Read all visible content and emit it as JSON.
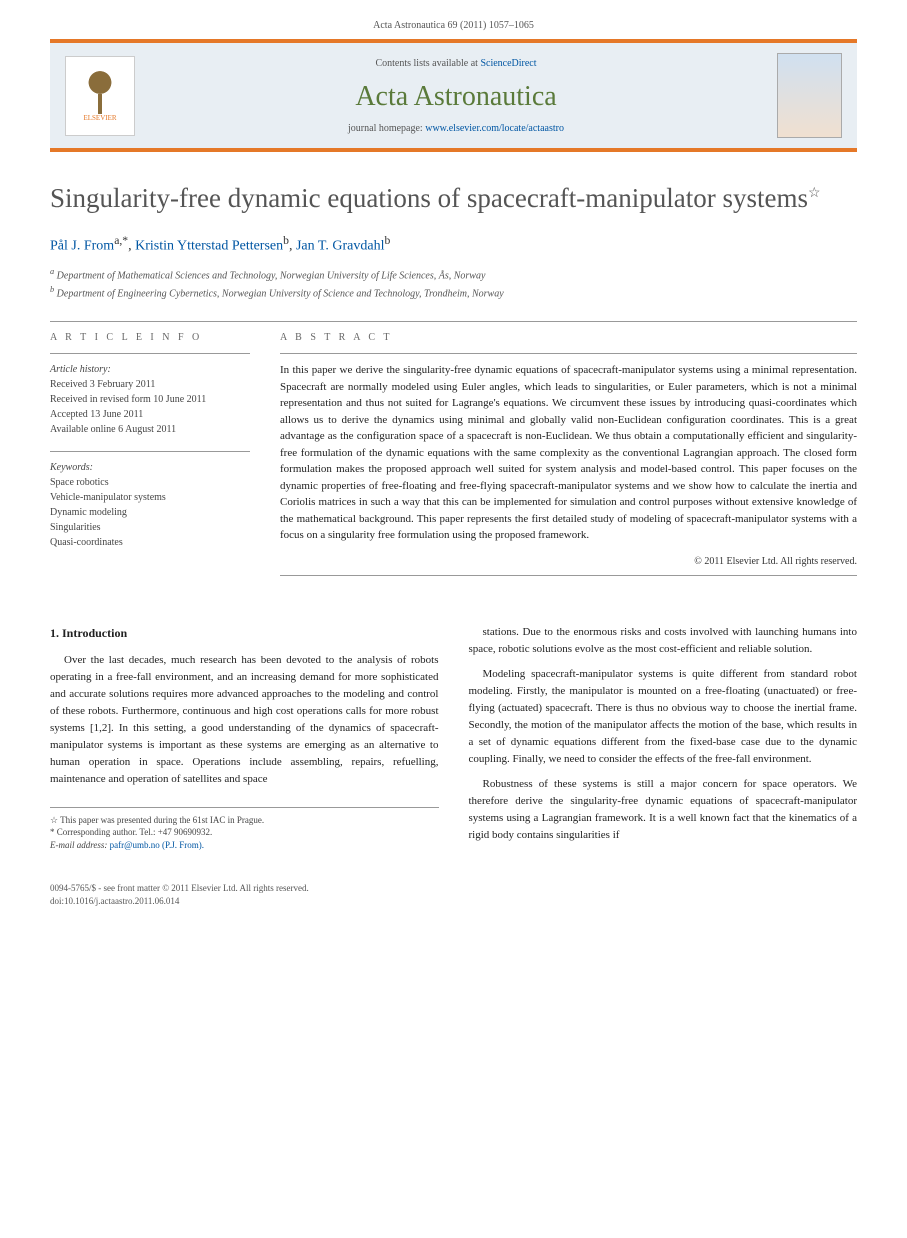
{
  "journal_ref": "Acta Astronautica 69 (2011) 1057–1065",
  "banner": {
    "contents_prefix": "Contents lists available at ",
    "contents_link": "ScienceDirect",
    "journal_name": "Acta Astronautica",
    "homepage_prefix": "journal homepage: ",
    "homepage_url": "www.elsevier.com/locate/actaastro",
    "publisher": "ELSEVIER"
  },
  "title": "Singularity-free dynamic equations of spacecraft-manipulator systems",
  "title_note_marker": "☆",
  "authors": [
    {
      "name": "Pål J. From",
      "aff": "a",
      "marks": ",*"
    },
    {
      "name": "Kristin Ytterstad Pettersen",
      "aff": "b",
      "marks": ""
    },
    {
      "name": "Jan T. Gravdahl",
      "aff": "b",
      "marks": ""
    }
  ],
  "affiliations": [
    {
      "key": "a",
      "text": "Department of Mathematical Sciences and Technology, Norwegian University of Life Sciences, Ås, Norway"
    },
    {
      "key": "b",
      "text": "Department of Engineering Cybernetics, Norwegian University of Science and Technology, Trondheim, Norway"
    }
  ],
  "info_heading": "a r t i c l e  i n f o",
  "abstract_heading": "a b s t r a c t",
  "history": {
    "label": "Article history:",
    "received": "Received 3 February 2011",
    "revised": "Received in revised form 10 June 2011",
    "accepted": "Accepted 13 June 2011",
    "online": "Available online 6 August 2011"
  },
  "keywords": {
    "label": "Keywords:",
    "items": [
      "Space robotics",
      "Vehicle-manipulator systems",
      "Dynamic modeling",
      "Singularities",
      "Quasi-coordinates"
    ]
  },
  "abstract": "In this paper we derive the singularity-free dynamic equations of spacecraft-manipulator systems using a minimal representation. Spacecraft are normally modeled using Euler angles, which leads to singularities, or Euler parameters, which is not a minimal representation and thus not suited for Lagrange's equations. We circumvent these issues by introducing quasi-coordinates which allows us to derive the dynamics using minimal and globally valid non-Euclidean configuration coordinates. This is a great advantage as the configuration space of a spacecraft is non-Euclidean. We thus obtain a computationally efficient and singularity-free formulation of the dynamic equations with the same complexity as the conventional Lagrangian approach. The closed form formulation makes the proposed approach well suited for system analysis and model-based control. This paper focuses on the dynamic properties of free-floating and free-flying spacecraft-manipulator systems and we show how to calculate the inertia and Coriolis matrices in such a way that this can be implemented for simulation and control purposes without extensive knowledge of the mathematical background. This paper represents the first detailed study of modeling of spacecraft-manipulator systems with a focus on a singularity free formulation using the proposed framework.",
  "copyright": "© 2011 Elsevier Ltd. All rights reserved.",
  "intro": {
    "heading": "1.  Introduction",
    "p1": "Over the last decades, much research has been devoted to the analysis of robots operating in a free-fall environment, and an increasing demand for more sophisticated and accurate solutions requires more advanced approaches to the modeling and control of these robots. Furthermore, continuous and high cost operations calls for more robust systems [1,2]. In this setting, a good understanding of the dynamics of spacecraft-manipulator systems is important as these systems are emerging as an alternative to human operation in space. Operations include assembling, repairs, refuelling, maintenance and operation of satellites and space",
    "p2": "stations. Due to the enormous risks and costs involved with launching humans into space, robotic solutions evolve as the most cost-efficient and reliable solution.",
    "p3": "Modeling spacecraft-manipulator systems is quite different from standard robot modeling. Firstly, the manipulator is mounted on a free-floating (unactuated) or free-flying (actuated) spacecraft. There is thus no obvious way to choose the inertial frame. Secondly, the motion of the manipulator affects the motion of the base, which results in a set of dynamic equations different from the fixed-base case due to the dynamic coupling. Finally, we need to consider the effects of the free-fall environment.",
    "p4": "Robustness of these systems is still a major concern for space operators. We therefore derive the singularity-free dynamic equations of spacecraft-manipulator systems using a Lagrangian framework. It is a well known fact that the kinematics of a rigid body contains singularities if"
  },
  "footnotes": {
    "presented": "☆ This paper was presented during the 61st IAC in Prague.",
    "corresponding": "* Corresponding author. Tel.: +47 90690932.",
    "email_label": "E-mail address:",
    "email": "pafr@umb.no (P.J. From)."
  },
  "footer": {
    "issn": "0094-5765/$ - see front matter © 2011 Elsevier Ltd. All rights reserved.",
    "doi": "doi:10.1016/j.actaastro.2011.06.014"
  },
  "colors": {
    "accent": "#e57828",
    "link": "#0056a3",
    "journal_green": "#5a7a3a",
    "banner_bg": "#e8eef3"
  }
}
